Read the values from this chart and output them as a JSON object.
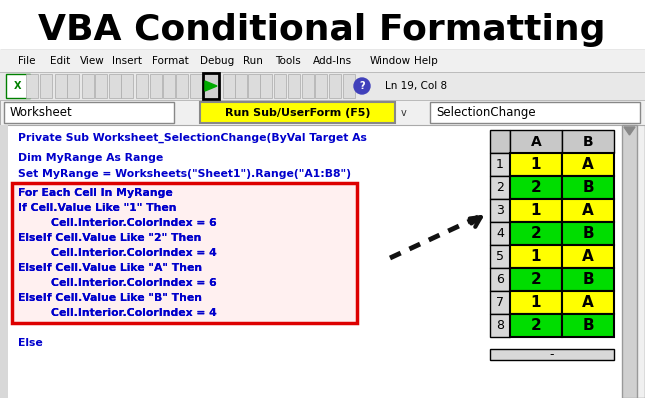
{
  "title": "VBA Conditional Formatting",
  "title_fontsize": 26,
  "title_fontweight": "bold",
  "bg_color": "#ffffff",
  "menubar_items": [
    "File",
    "Edit",
    "View",
    "Insert",
    "Format",
    "Debug",
    "Run",
    "Tools",
    "Add-Ins",
    "Window",
    "Help"
  ],
  "menubar_x": [
    18,
    50,
    80,
    112,
    152,
    200,
    243,
    275,
    313,
    370,
    414
  ],
  "toolbar_text": "Ln 19, Col 8",
  "combo1_text": "Worksheet",
  "combo2_text": "Run Sub/UserForm (F5)",
  "combo2_bg": "#ffff00",
  "combo3_text": "SelectionChange",
  "code_line1": "Private Sub Worksheet_SelectionChange(ByVal Target As",
  "code_line2": "Dim MyRange As Range",
  "code_line3": "Set MyRange = Worksheets(\"Sheet1\").Range(\"A1:B8\")",
  "highlighted_lines": [
    "For Each Cell In MyRange",
    "If Cell.Value Like \"1\" Then",
    "    Cell.Interior.ColorIndex = 6",
    "ElseIf Cell.Value Like \"2\" Then",
    "    Cell.Interior.ColorIndex = 4",
    "ElseIf Cell.Value Like \"A\" Then",
    "    Cell.Interior.ColorIndex = 6",
    "ElseIf Cell.Value Like \"B\" Then",
    "    Cell.Interior.ColorIndex = 4"
  ],
  "else_line": "Else",
  "code_color": "#0000cc",
  "code_fontsize": 7.8,
  "table_row_headers": [
    "1",
    "2",
    "3",
    "4",
    "5",
    "6",
    "7",
    "8"
  ],
  "table_col_a": [
    "1",
    "2",
    "1",
    "2",
    "1",
    "2",
    "1",
    "2"
  ],
  "table_col_b": [
    "A",
    "B",
    "A",
    "B",
    "A",
    "B",
    "A",
    "B"
  ],
  "yellow_color": "#ffff00",
  "green_color": "#00dd00",
  "red_box_color": "#dd0000",
  "ide_border_color": "#aaaaaa",
  "scrollbar_color": "#c8c8c8",
  "menu_bg": "#f0f0f0",
  "toolbar_bg": "#e8e8e8",
  "code_area_bg": "#ffffff",
  "table_header_bg": "#d0d0d0",
  "combo_bar_bg": "#f0f0f0"
}
